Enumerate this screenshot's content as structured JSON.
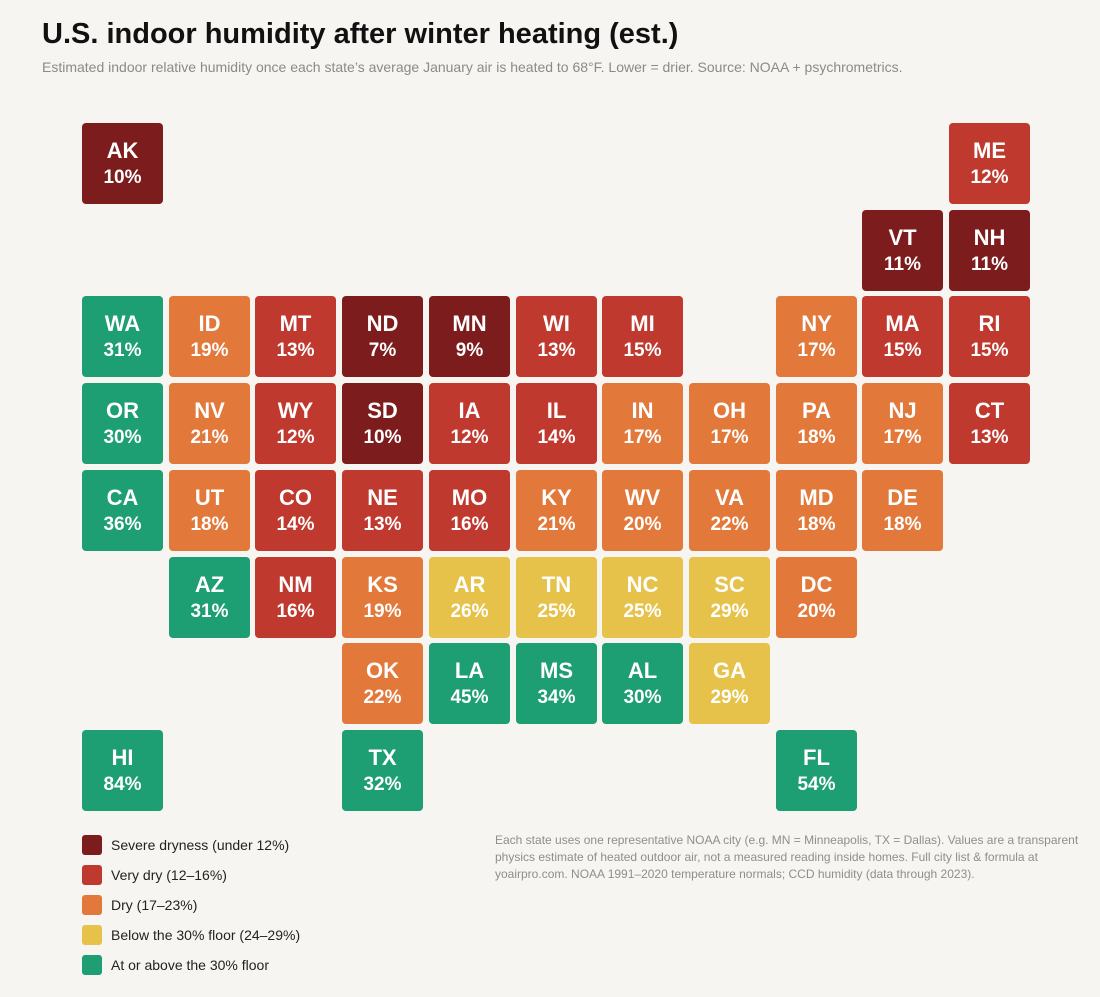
{
  "header": {
    "title": "U.S. indoor humidity after winter heating (est.)",
    "subtitle": "Estimated indoor relative humidity once each state’s average January air is heated to 68°F. Lower = drier. Source: NOAA + psychrometrics."
  },
  "colors": {
    "severe": "#7d1c1c",
    "very_dry": "#c0392f",
    "dry": "#e2793a",
    "below_floor": "#e6c24b",
    "at_floor": "#1d9e73"
  },
  "legend": [
    {
      "label": "Severe dryness (under 12%)",
      "category": "severe"
    },
    {
      "label": "Very dry (12–16%)",
      "category": "very_dry"
    },
    {
      "label": "Dry (17–23%)",
      "category": "dry"
    },
    {
      "label": "Below the 30% floor (24–29%)",
      "category": "below_floor"
    },
    {
      "label": "At or above the 30% floor",
      "category": "at_floor"
    }
  ],
  "footnote": "Each state uses one representative NOAA city (e.g. MN = Minneapolis, TX = Dallas). Values are a transparent physics estimate of heated outdoor air, not a measured reading inside homes. Full city list & formula at yoairpro.com. NOAA 1991–2020 temperature normals; CCD humidity (data through 2023).",
  "states": [
    {
      "abbr": "AK",
      "value": "10%",
      "category": "severe",
      "row": 0,
      "col": 0
    },
    {
      "abbr": "ME",
      "value": "12%",
      "category": "very_dry",
      "row": 0,
      "col": 10
    },
    {
      "abbr": "VT",
      "value": "11%",
      "category": "severe",
      "row": 1,
      "col": 9
    },
    {
      "abbr": "NH",
      "value": "11%",
      "category": "severe",
      "row": 1,
      "col": 10
    },
    {
      "abbr": "WA",
      "value": "31%",
      "category": "at_floor",
      "row": 2,
      "col": 0
    },
    {
      "abbr": "ID",
      "value": "19%",
      "category": "dry",
      "row": 2,
      "col": 1
    },
    {
      "abbr": "MT",
      "value": "13%",
      "category": "very_dry",
      "row": 2,
      "col": 2
    },
    {
      "abbr": "ND",
      "value": "7%",
      "category": "severe",
      "row": 2,
      "col": 3
    },
    {
      "abbr": "MN",
      "value": "9%",
      "category": "severe",
      "row": 2,
      "col": 4
    },
    {
      "abbr": "WI",
      "value": "13%",
      "category": "very_dry",
      "row": 2,
      "col": 5
    },
    {
      "abbr": "MI",
      "value": "15%",
      "category": "very_dry",
      "row": 2,
      "col": 6
    },
    {
      "abbr": "NY",
      "value": "17%",
      "category": "dry",
      "row": 2,
      "col": 8
    },
    {
      "abbr": "MA",
      "value": "15%",
      "category": "very_dry",
      "row": 2,
      "col": 9
    },
    {
      "abbr": "RI",
      "value": "15%",
      "category": "very_dry",
      "row": 2,
      "col": 10
    },
    {
      "abbr": "OR",
      "value": "30%",
      "category": "at_floor",
      "row": 3,
      "col": 0
    },
    {
      "abbr": "NV",
      "value": "21%",
      "category": "dry",
      "row": 3,
      "col": 1
    },
    {
      "abbr": "WY",
      "value": "12%",
      "category": "very_dry",
      "row": 3,
      "col": 2
    },
    {
      "abbr": "SD",
      "value": "10%",
      "category": "severe",
      "row": 3,
      "col": 3
    },
    {
      "abbr": "IA",
      "value": "12%",
      "category": "very_dry",
      "row": 3,
      "col": 4
    },
    {
      "abbr": "IL",
      "value": "14%",
      "category": "very_dry",
      "row": 3,
      "col": 5
    },
    {
      "abbr": "IN",
      "value": "17%",
      "category": "dry",
      "row": 3,
      "col": 6
    },
    {
      "abbr": "OH",
      "value": "17%",
      "category": "dry",
      "row": 3,
      "col": 7
    },
    {
      "abbr": "PA",
      "value": "18%",
      "category": "dry",
      "row": 3,
      "col": 8
    },
    {
      "abbr": "NJ",
      "value": "17%",
      "category": "dry",
      "row": 3,
      "col": 9
    },
    {
      "abbr": "CT",
      "value": "13%",
      "category": "very_dry",
      "row": 3,
      "col": 10
    },
    {
      "abbr": "CA",
      "value": "36%",
      "category": "at_floor",
      "row": 4,
      "col": 0
    },
    {
      "abbr": "UT",
      "value": "18%",
      "category": "dry",
      "row": 4,
      "col": 1
    },
    {
      "abbr": "CO",
      "value": "14%",
      "category": "very_dry",
      "row": 4,
      "col": 2
    },
    {
      "abbr": "NE",
      "value": "13%",
      "category": "very_dry",
      "row": 4,
      "col": 3
    },
    {
      "abbr": "MO",
      "value": "16%",
      "category": "very_dry",
      "row": 4,
      "col": 4
    },
    {
      "abbr": "KY",
      "value": "21%",
      "category": "dry",
      "row": 4,
      "col": 5
    },
    {
      "abbr": "WV",
      "value": "20%",
      "category": "dry",
      "row": 4,
      "col": 6
    },
    {
      "abbr": "VA",
      "value": "22%",
      "category": "dry",
      "row": 4,
      "col": 7
    },
    {
      "abbr": "MD",
      "value": "18%",
      "category": "dry",
      "row": 4,
      "col": 8
    },
    {
      "abbr": "DE",
      "value": "18%",
      "category": "dry",
      "row": 4,
      "col": 9
    },
    {
      "abbr": "AZ",
      "value": "31%",
      "category": "at_floor",
      "row": 5,
      "col": 1
    },
    {
      "abbr": "NM",
      "value": "16%",
      "category": "very_dry",
      "row": 5,
      "col": 2
    },
    {
      "abbr": "KS",
      "value": "19%",
      "category": "dry",
      "row": 5,
      "col": 3
    },
    {
      "abbr": "AR",
      "value": "26%",
      "category": "below_floor",
      "row": 5,
      "col": 4
    },
    {
      "abbr": "TN",
      "value": "25%",
      "category": "below_floor",
      "row": 5,
      "col": 5
    },
    {
      "abbr": "NC",
      "value": "25%",
      "category": "below_floor",
      "row": 5,
      "col": 6
    },
    {
      "abbr": "SC",
      "value": "29%",
      "category": "below_floor",
      "row": 5,
      "col": 7
    },
    {
      "abbr": "DC",
      "value": "20%",
      "category": "dry",
      "row": 5,
      "col": 8
    },
    {
      "abbr": "OK",
      "value": "22%",
      "category": "dry",
      "row": 6,
      "col": 3
    },
    {
      "abbr": "LA",
      "value": "45%",
      "category": "at_floor",
      "row": 6,
      "col": 4
    },
    {
      "abbr": "MS",
      "value": "34%",
      "category": "at_floor",
      "row": 6,
      "col": 5
    },
    {
      "abbr": "AL",
      "value": "30%",
      "category": "at_floor",
      "row": 6,
      "col": 6
    },
    {
      "abbr": "GA",
      "value": "29%",
      "category": "below_floor",
      "row": 6,
      "col": 7
    },
    {
      "abbr": "HI",
      "value": "84%",
      "category": "at_floor",
      "row": 7,
      "col": 0
    },
    {
      "abbr": "TX",
      "value": "32%",
      "category": "at_floor",
      "row": 7,
      "col": 3
    },
    {
      "abbr": "FL",
      "value": "54%",
      "category": "at_floor",
      "row": 7,
      "col": 8
    }
  ]
}
